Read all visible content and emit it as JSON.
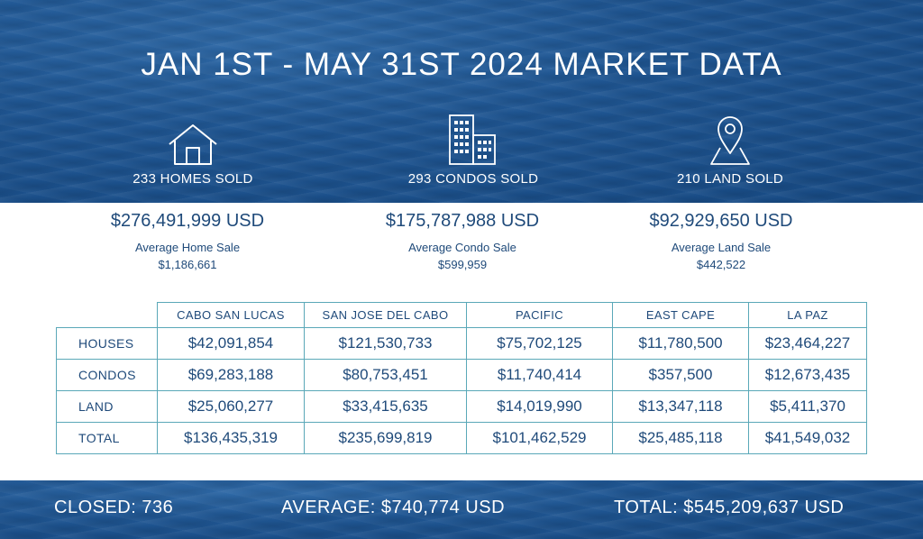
{
  "title": "JAN 1ST - MAY 31ST 2024 MARKET DATA",
  "stats": [
    {
      "icon": "house-icon",
      "label": "233 HOMES SOLD",
      "amount": "$276,491,999 USD",
      "avg_label": "Average Home Sale",
      "avg_value": "$1,186,661"
    },
    {
      "icon": "condo-building-icon",
      "label": "293 CONDOS SOLD",
      "amount": "$175,787,988 USD",
      "avg_label": "Average Condo Sale",
      "avg_value": "$599,959"
    },
    {
      "icon": "location-pin-icon",
      "label": "210 LAND SOLD",
      "amount": "$92,929,650 USD",
      "avg_label": "Average Land Sale",
      "avg_value": "$442,522"
    }
  ],
  "table": {
    "columns": [
      "CABO SAN LUCAS",
      "SAN JOSE DEL CABO",
      "PACIFIC",
      "EAST CAPE",
      "LA PAZ"
    ],
    "rows": [
      {
        "label": "HOUSES",
        "values": [
          "$42,091,854",
          "$121,530,733",
          "$75,702,125",
          "$11,780,500",
          "$23,464,227"
        ]
      },
      {
        "label": "CONDOS",
        "values": [
          "$69,283,188",
          "$80,753,451",
          "$11,740,414",
          "$357,500",
          "$12,673,435"
        ]
      },
      {
        "label": "LAND",
        "values": [
          "$25,060,277",
          "$33,415,635",
          "$14,019,990",
          "$13,347,118",
          "$5,411,370"
        ]
      },
      {
        "label": "TOTAL",
        "values": [
          "$136,435,319",
          "$235,699,819",
          "$101,462,529",
          "$25,485,118",
          "$41,549,032"
        ]
      }
    ]
  },
  "footer": {
    "closed": "CLOSED:  736",
    "average": "AVERAGE:  $740,774 USD",
    "total": "TOTAL:  $545,209,637 USD"
  },
  "colors": {
    "ocean": "#1f5693",
    "text_dark": "#1f4a7a",
    "table_border": "#5aa8b8"
  }
}
